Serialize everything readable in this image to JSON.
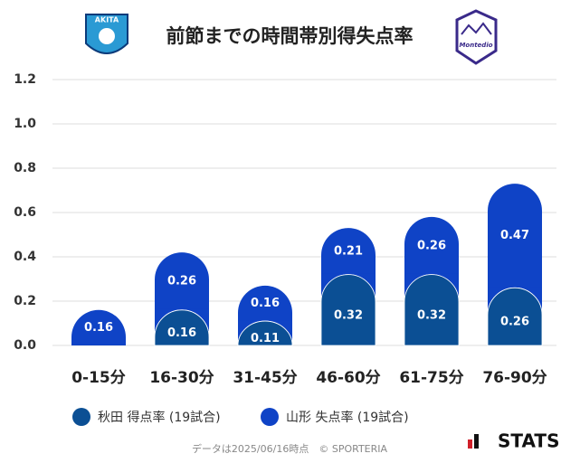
{
  "chart_data": {
    "type": "stacked-bar",
    "title": "前節までの時間帯別得失点率",
    "categories": [
      "0-15分",
      "16-30分",
      "31-45分",
      "46-60分",
      "61-75分",
      "76-90分"
    ],
    "series": [
      {
        "name": "秋田 得点率 (19試合)",
        "color": "#0b4f94",
        "values": [
          0,
          0.16,
          0.11,
          0.32,
          0.32,
          0.26
        ]
      },
      {
        "name": "山形 失点率 (19試合)",
        "color": "#0f43c6",
        "values": [
          0.16,
          0.26,
          0.16,
          0.21,
          0.26,
          0.47
        ]
      }
    ],
    "ylim": [
      0,
      1.2
    ],
    "yticks": [
      {
        "value": 0,
        "label": "0.0"
      },
      0.2,
      0.4,
      0.6,
      0.8,
      {
        "value": 1,
        "label": "1.0"
      },
      1.2
    ],
    "grid": true,
    "footnote": "データは2025/06/16時点　© SPORTERIA",
    "brand": "STATS",
    "team_logos": {
      "left": "AKITA",
      "right": "Montedio"
    }
  }
}
